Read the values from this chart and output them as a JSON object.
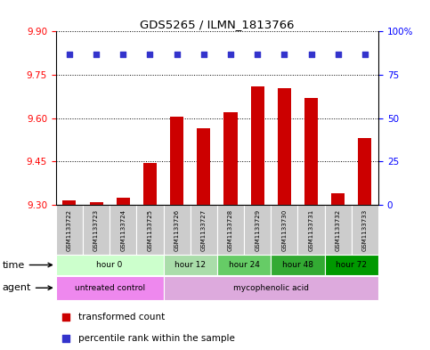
{
  "title": "GDS5265 / ILMN_1813766",
  "samples": [
    "GSM1133722",
    "GSM1133723",
    "GSM1133724",
    "GSM1133725",
    "GSM1133726",
    "GSM1133727",
    "GSM1133728",
    "GSM1133729",
    "GSM1133730",
    "GSM1133731",
    "GSM1133732",
    "GSM1133733"
  ],
  "bar_values": [
    9.315,
    9.31,
    9.325,
    9.445,
    9.605,
    9.565,
    9.62,
    9.71,
    9.705,
    9.67,
    9.34,
    9.53
  ],
  "bar_baseline": 9.3,
  "dot_y_data": [
    87,
    87,
    87,
    87,
    87,
    87,
    87,
    87,
    87,
    87,
    87,
    87
  ],
  "ylim_left": [
    9.3,
    9.9
  ],
  "ylim_right": [
    0,
    100
  ],
  "yticks_left": [
    9.3,
    9.45,
    9.6,
    9.75,
    9.9
  ],
  "yticks_right": [
    0,
    25,
    50,
    75,
    100
  ],
  "ytick_right_labels": [
    "0",
    "25",
    "50",
    "75",
    "100%"
  ],
  "bar_color": "#cc0000",
  "dot_color": "#3333cc",
  "time_groups": [
    {
      "label": "hour 0",
      "start": 0,
      "end": 4,
      "color": "#ccffcc"
    },
    {
      "label": "hour 12",
      "start": 4,
      "end": 6,
      "color": "#aaddaa"
    },
    {
      "label": "hour 24",
      "start": 6,
      "end": 8,
      "color": "#66cc66"
    },
    {
      "label": "hour 48",
      "start": 8,
      "end": 10,
      "color": "#33aa33"
    },
    {
      "label": "hour 72",
      "start": 10,
      "end": 12,
      "color": "#009900"
    }
  ],
  "agent_groups": [
    {
      "label": "untreated control",
      "start": 0,
      "end": 4,
      "color": "#ee88ee"
    },
    {
      "label": "mycophenolic acid",
      "start": 4,
      "end": 12,
      "color": "#ddaadd"
    }
  ],
  "legend_items": [
    {
      "label": "transformed count",
      "color": "#cc0000"
    },
    {
      "label": "percentile rank within the sample",
      "color": "#3333cc"
    }
  ]
}
